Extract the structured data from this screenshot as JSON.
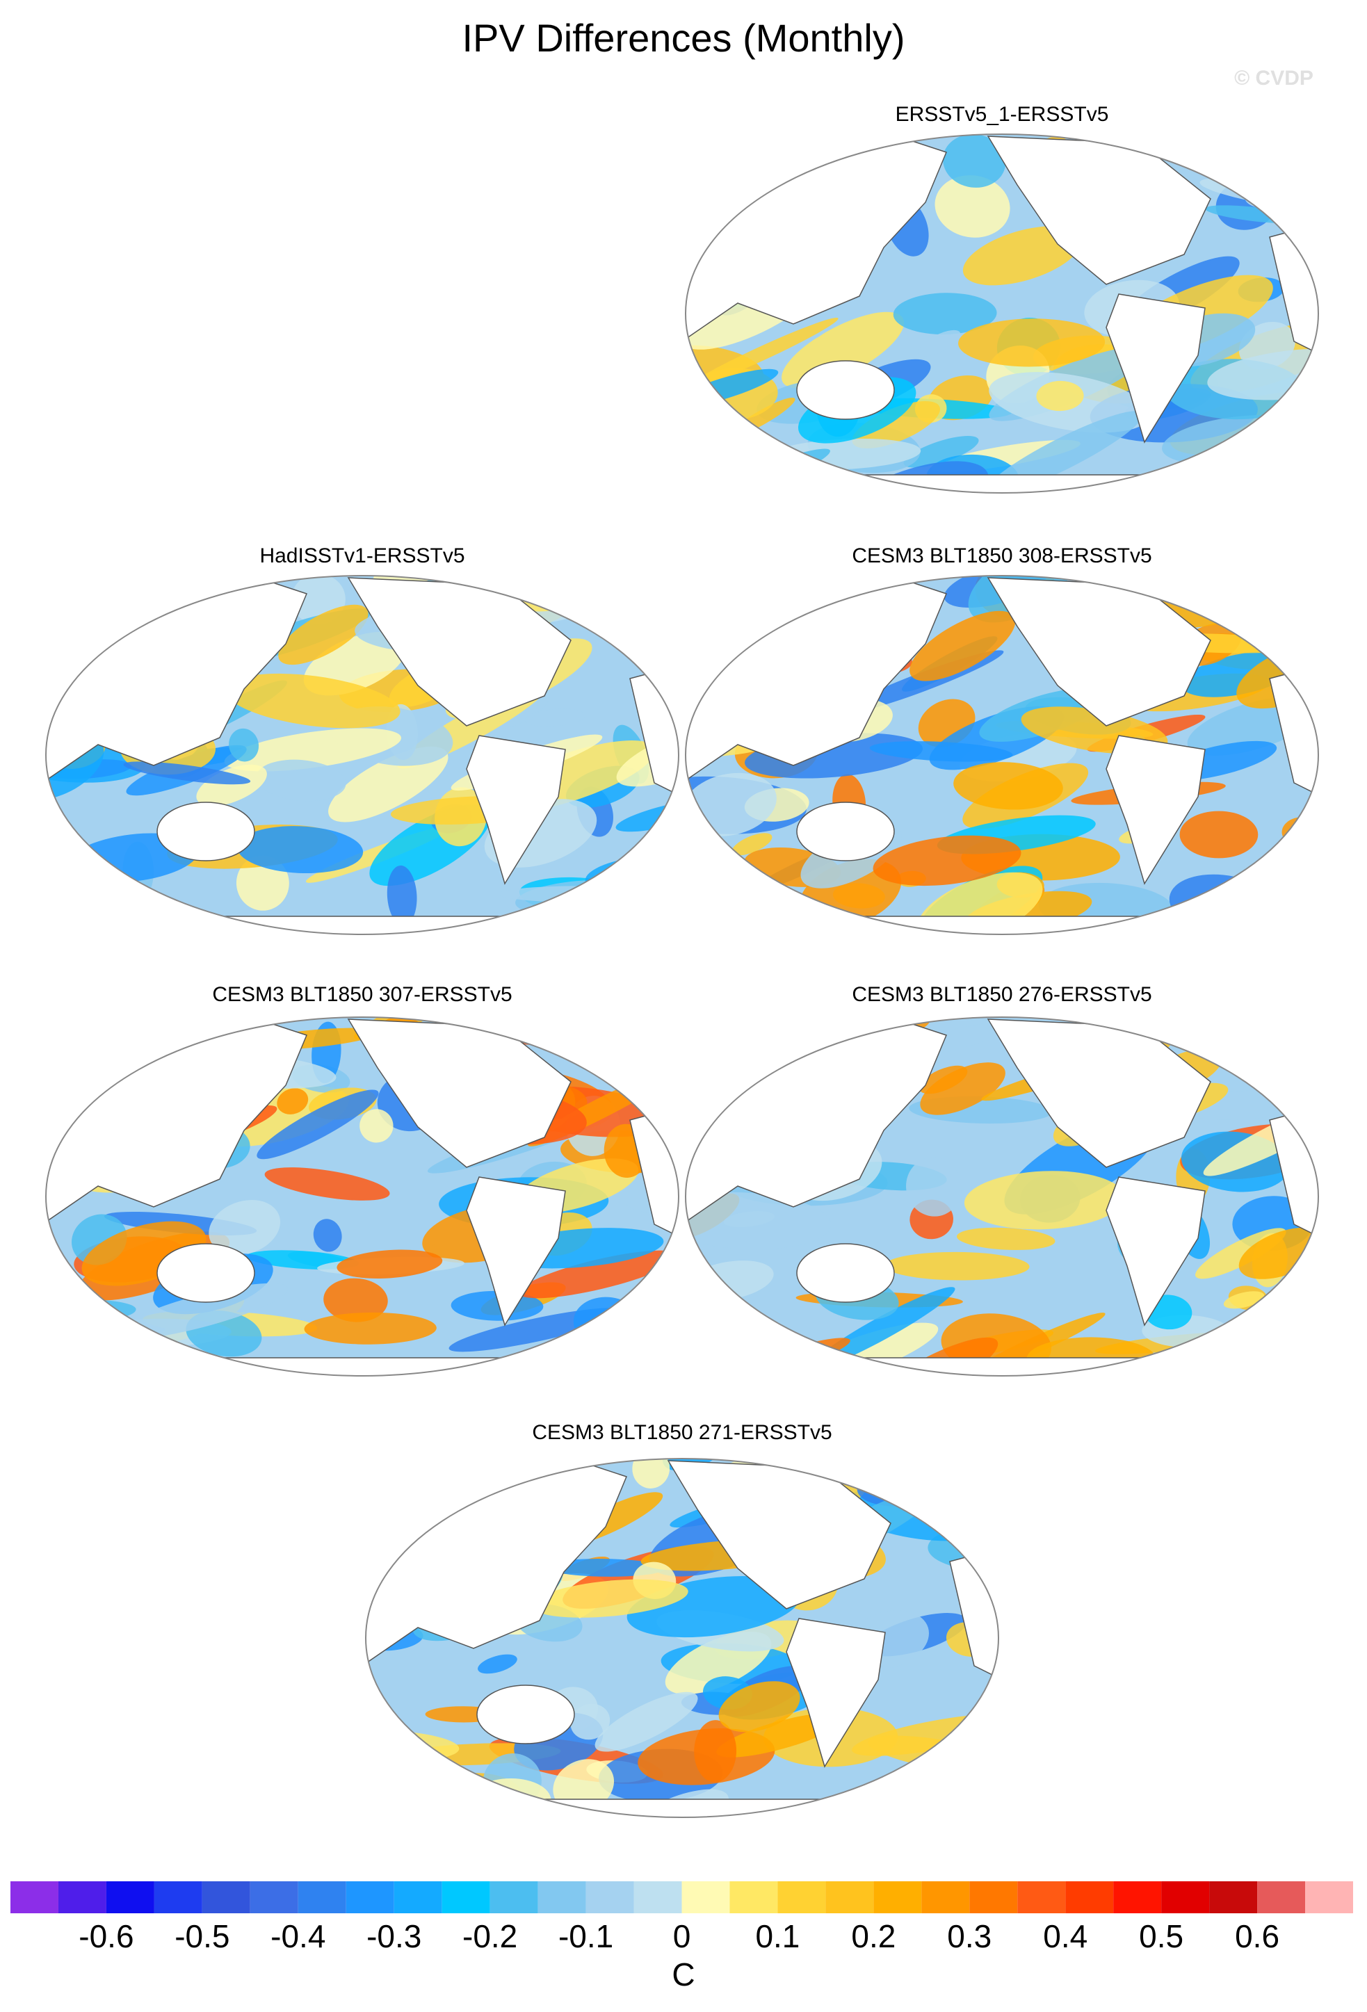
{
  "title": "IPV Differences (Monthly)",
  "watermark": "© CVDP",
  "panels": [
    {
      "title": "ERSSTv5_1-ERSSTv5"
    },
    {
      "title": "HadISSTv1-ERSSTv5"
    },
    {
      "title": "CESM3 BLT1850 308-ERSSTv5"
    },
    {
      "title": "CESM3 BLT1850 307-ERSSTv5"
    },
    {
      "title": "CESM3 BLT1850 276-ERSSTv5"
    },
    {
      "title": "CESM3 BLT1850 271-ERSSTv5"
    }
  ],
  "colorbar": {
    "lim": [
      -0.7,
      0.7
    ],
    "ticks": [
      -0.6,
      -0.5,
      -0.4,
      -0.3,
      -0.2,
      -0.1,
      0,
      0.1,
      0.2,
      0.3,
      0.4,
      0.5,
      0.6
    ],
    "colors": [
      "#8c2ee8",
      "#4f1eea",
      "#0f0ff0",
      "#1e3cf0",
      "#3255dc",
      "#3c6ee6",
      "#2f82f0",
      "#1e96ff",
      "#14aaff",
      "#00c8ff",
      "#4cbef0",
      "#82c8f0",
      "#a5d2f0",
      "#bee0f0",
      "#fffab4",
      "#ffe864",
      "#ffd232",
      "#ffc31e",
      "#ffaf00",
      "#ff9600",
      "#ff7800",
      "#ff5a14",
      "#ff3c00",
      "#ff1400",
      "#e10000",
      "#c80a0a",
      "#e65a5a",
      "#ffb4b4"
    ],
    "unit": "C"
  }
}
